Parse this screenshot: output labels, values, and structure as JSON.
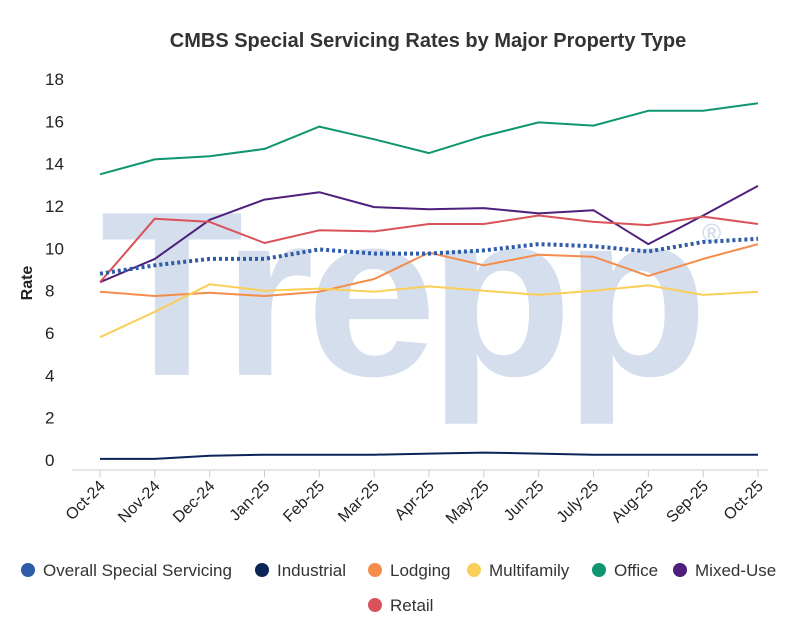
{
  "chart_data": {
    "type": "line",
    "title": "CMBS Special Servicing Rates by Major Property Type",
    "xlabel": "",
    "ylabel": "Rate",
    "ylim": [
      0,
      18
    ],
    "yticks": [
      0,
      2,
      4,
      6,
      8,
      10,
      12,
      14,
      16,
      18
    ],
    "grid": false,
    "legend": "bottom",
    "watermark": "Trepp",
    "watermark_mark": "®",
    "categories": [
      "Oct-24",
      "Nov-24",
      "Dec-24",
      "Jan-25",
      "Feb-25",
      "Mar-25",
      "Apr-25",
      "May-25",
      "Jun-25",
      "July-25",
      "Aug-25",
      "Sep-25",
      "Oct-25"
    ],
    "series": [
      {
        "name": "Overall Special Servicing",
        "color": "#2f5ca8",
        "dashed": true,
        "values": [
          8.8,
          9.2,
          9.5,
          9.5,
          9.95,
          9.75,
          9.75,
          9.9,
          10.2,
          10.1,
          9.85,
          10.3,
          10.45
        ]
      },
      {
        "name": "Industrial",
        "color": "#0b2559",
        "dashed": false,
        "values": [
          0.05,
          0.05,
          0.2,
          0.25,
          0.25,
          0.25,
          0.3,
          0.35,
          0.3,
          0.25,
          0.25,
          0.25,
          0.25
        ]
      },
      {
        "name": "Lodging",
        "color": "#f48c4c",
        "dashed": false,
        "values": [
          7.95,
          7.75,
          7.9,
          7.75,
          7.95,
          8.55,
          9.8,
          9.2,
          9.7,
          9.6,
          8.7,
          9.5,
          10.2
        ]
      },
      {
        "name": "Multifamily",
        "color": "#f9cf58",
        "dashed": false,
        "values": [
          5.8,
          7.0,
          8.3,
          8.0,
          8.1,
          7.95,
          8.2,
          8.0,
          7.8,
          8.0,
          8.25,
          7.8,
          7.95
        ]
      },
      {
        "name": "Office",
        "color": "#0f9570",
        "dashed": false,
        "values": [
          13.5,
          14.2,
          14.35,
          14.7,
          15.75,
          15.15,
          14.5,
          15.3,
          15.95,
          15.8,
          16.5,
          16.5,
          16.85
        ]
      },
      {
        "name": "Mixed-Use",
        "color": "#4e1f7d",
        "dashed": false,
        "values": [
          8.4,
          9.5,
          11.35,
          12.3,
          12.65,
          11.95,
          11.85,
          11.9,
          11.65,
          11.8,
          10.2,
          11.55,
          12.95
        ]
      },
      {
        "name": "Retail",
        "color": "#d9525a",
        "dashed": false,
        "values": [
          8.4,
          11.4,
          11.25,
          10.25,
          10.85,
          10.8,
          11.15,
          11.15,
          11.55,
          11.25,
          11.1,
          11.5,
          11.15
        ]
      }
    ]
  }
}
